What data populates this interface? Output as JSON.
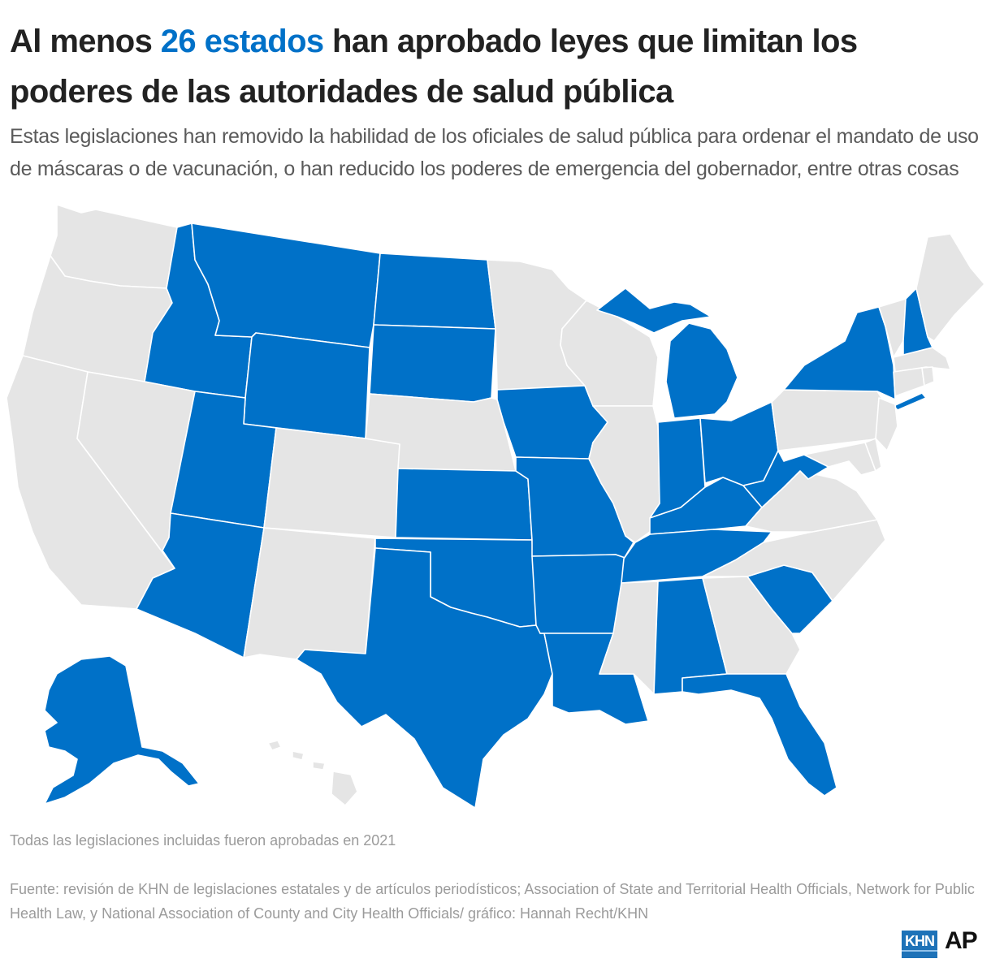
{
  "header": {
    "title_part1": "Al menos ",
    "title_highlight": "26 estados",
    "title_part2": " han aprobado leyes que limitan los poderes de las autoridades de salud pública",
    "subtitle": "Estas legislaciones han removido la habilidad de los oficiales de salud pública para ordenar el mandato de uso de máscaras o de vacunación, o han reducido los poderes de emergencia del gobernador, entre otras cosas"
  },
  "colors": {
    "highlight": "#0071c8",
    "state_with_law": "#0071c8",
    "state_without_law": "#e5e5e5"
  },
  "map_data": {
    "states_with_laws": [
      "AK",
      "AL",
      "AR",
      "AZ",
      "FL",
      "ID",
      "IN",
      "IA",
      "KS",
      "KY",
      "LA",
      "MI",
      "MO",
      "MT",
      "NH",
      "NY",
      "ND",
      "OH",
      "OK",
      "SC",
      "SD",
      "TN",
      "TX",
      "UT",
      "WV",
      "WY"
    ],
    "states_without_laws": [
      "CA",
      "CO",
      "CT",
      "DE",
      "GA",
      "HI",
      "IL",
      "ME",
      "MD",
      "MA",
      "MN",
      "MS",
      "NE",
      "NV",
      "NJ",
      "NM",
      "NC",
      "OR",
      "PA",
      "RI",
      "VT",
      "VA",
      "WA",
      "WI"
    ]
  },
  "footer": {
    "note": "Todas las legislaciones incluidas fueron aprobadas en 2021",
    "source": "Fuente: revisión de KHN de legislaciones estatales y de artículos periodísticos; Association of State and Territorial Health Officials, Network for Public Health Law, y National Association of County and City Health Officials/ gráfico: Hannah Recht/KHN"
  },
  "logos": {
    "khn": "KHN",
    "ap": "AP"
  }
}
